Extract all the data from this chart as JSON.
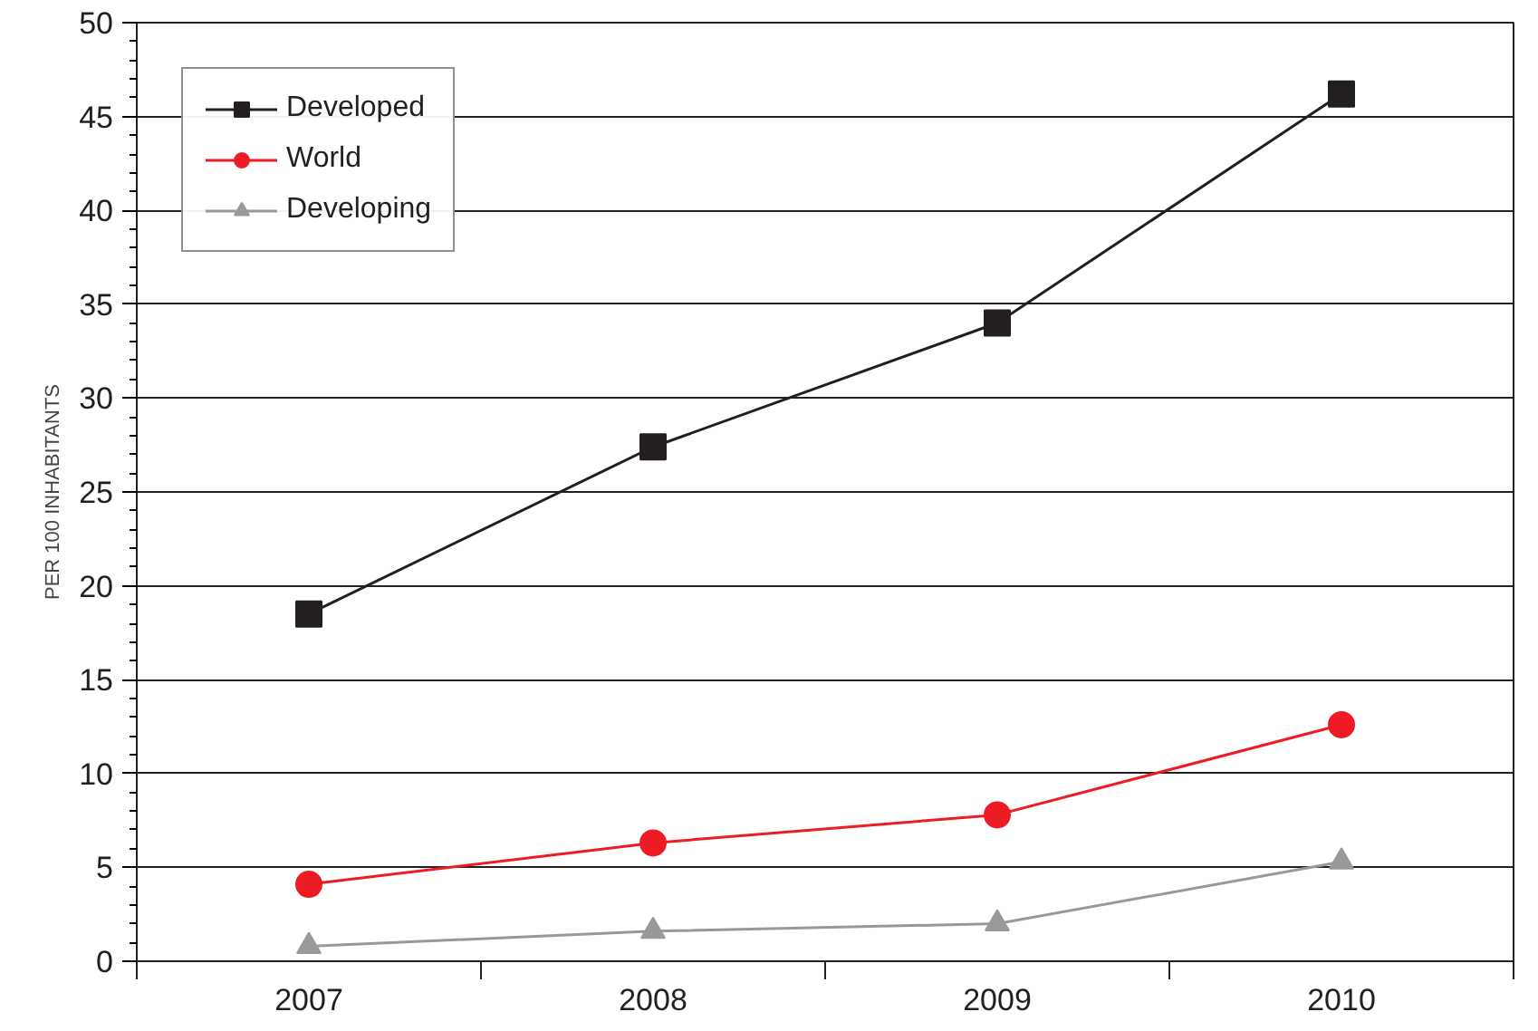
{
  "chart_data": {
    "type": "line",
    "ylabel": "PER 100 INHABITANTS",
    "categories": [
      "2007",
      "2008",
      "2009",
      "2010"
    ],
    "series": [
      {
        "name": "Developed",
        "color": "#231f20",
        "marker": "square",
        "values": [
          18.5,
          27.4,
          34.0,
          46.2
        ]
      },
      {
        "name": "World",
        "color": "#ed1c24",
        "marker": "circle",
        "values": [
          4.1,
          6.3,
          7.8,
          12.6
        ]
      },
      {
        "name": "Developing",
        "color": "#999999",
        "marker": "triangle",
        "values": [
          0.8,
          1.6,
          2.0,
          5.3
        ]
      }
    ],
    "ylim": [
      0,
      50
    ],
    "yticks": [
      0,
      5,
      10,
      15,
      20,
      25,
      30,
      35,
      40,
      45,
      50
    ],
    "grid": "y",
    "legend": "top left",
    "line_style": "solid"
  }
}
